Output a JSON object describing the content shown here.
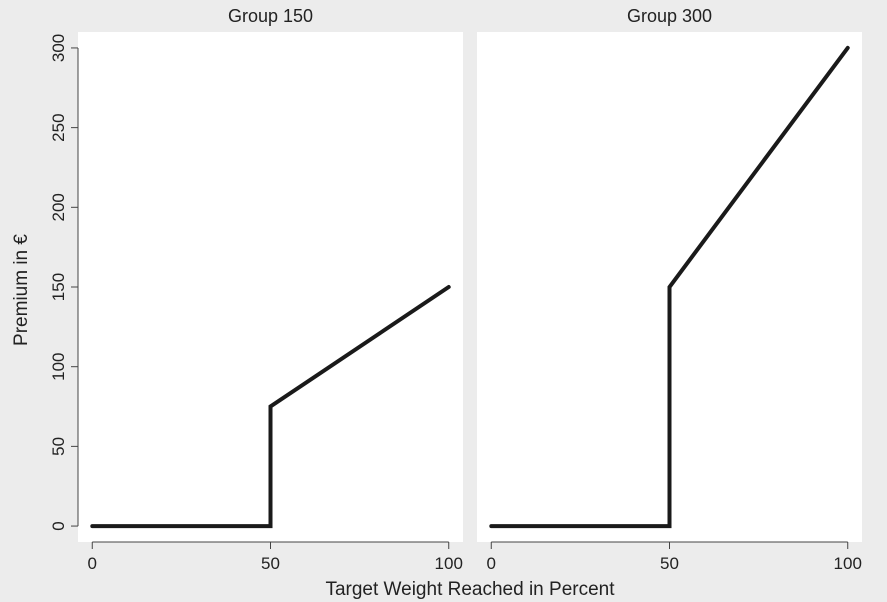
{
  "chart_data": {
    "type": "line",
    "xlabel": "Target Weight Reached in Percent",
    "ylabel": "Premium in €",
    "xlim": [
      -4,
      104
    ],
    "ylim": [
      -10,
      310
    ],
    "xticks": [
      0,
      50,
      100
    ],
    "yticks": [
      0,
      50,
      100,
      150,
      200,
      250,
      300
    ],
    "grid": false,
    "panels": [
      {
        "title": "Group 150",
        "series": [
          {
            "x": [
              0,
              50,
              50,
              100
            ],
            "y": [
              0,
              0,
              75,
              150
            ]
          }
        ]
      },
      {
        "title": "Group 300",
        "series": [
          {
            "x": [
              0,
              50,
              50,
              100
            ],
            "y": [
              0,
              0,
              150,
              300
            ]
          }
        ]
      }
    ]
  },
  "colors": {
    "background": "#ececec",
    "plot_area": "#ffffff",
    "line": "#1a1a1a"
  }
}
